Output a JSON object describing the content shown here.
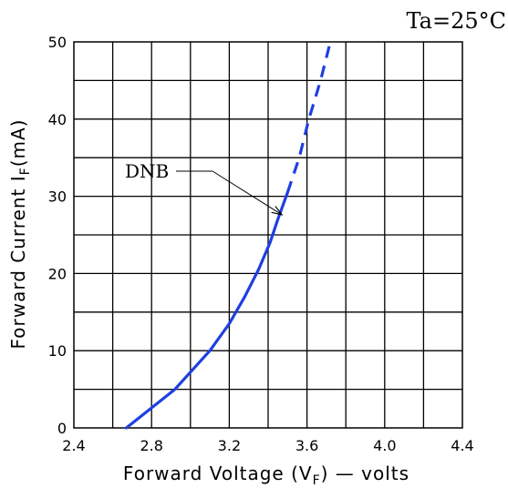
{
  "chart_data": {
    "type": "line",
    "condition": "Ta=25°C",
    "xlabel_main": "Forward Voltage (V",
    "xlabel_sub": "F",
    "xlabel_tail": ") — volts",
    "ylabel_main": "Forward Current I",
    "ylabel_sub": "F",
    "ylabel_tail": "(mA)",
    "xlim": [
      2.4,
      4.4
    ],
    "ylim": [
      0,
      50
    ],
    "x_ticks": [
      "2.4",
      "2.8",
      "3.2",
      "3.6",
      "4.0",
      "4.4"
    ],
    "y_ticks": [
      "0",
      "10",
      "20",
      "30",
      "40",
      "50"
    ],
    "x_grid_step": 0.2,
    "y_grid_step": 5,
    "grid": true,
    "line_color": "#1f3fe0",
    "series": [
      {
        "name": "DNB",
        "solid": {
          "x": [
            2.67,
            2.92,
            3.1,
            3.2,
            3.28,
            3.35,
            3.41,
            3.45,
            3.5
          ],
          "y": [
            0,
            5,
            10,
            13.5,
            17,
            20.5,
            24,
            27,
            30.5
          ]
        },
        "dashed": {
          "x": [
            3.5,
            3.56,
            3.61,
            3.67,
            3.72
          ],
          "y": [
            30.5,
            35,
            40,
            45,
            50
          ]
        }
      }
    ],
    "annotation": {
      "text": "DNB",
      "target_x": 3.48,
      "target_y": 27.5
    }
  }
}
